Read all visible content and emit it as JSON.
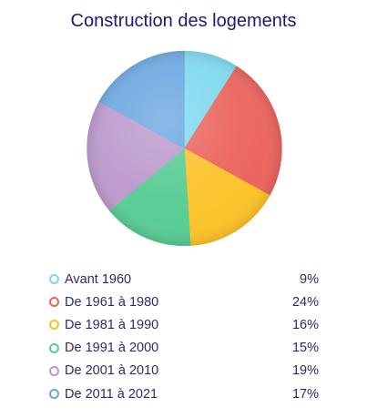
{
  "chart_data": {
    "type": "pie",
    "title": "Construction des logements",
    "categories": [
      "Avant 1960",
      "De 1961 à 1980",
      "De 1981 à 1990",
      "De 1991 à 2000",
      "De 2001 à 2010",
      "De 2011 à 2021"
    ],
    "values": [
      9,
      24,
      16,
      15,
      19,
      17
    ],
    "value_labels": [
      "9%",
      "24%",
      "16%",
      "15%",
      "19%",
      "17%"
    ],
    "unit": "%",
    "colors": [
      "#7dd8ef",
      "#ec635c",
      "#fcc228",
      "#56cc93",
      "#bb98cc",
      "#69a6e0"
    ],
    "legend_position": "bottom"
  }
}
